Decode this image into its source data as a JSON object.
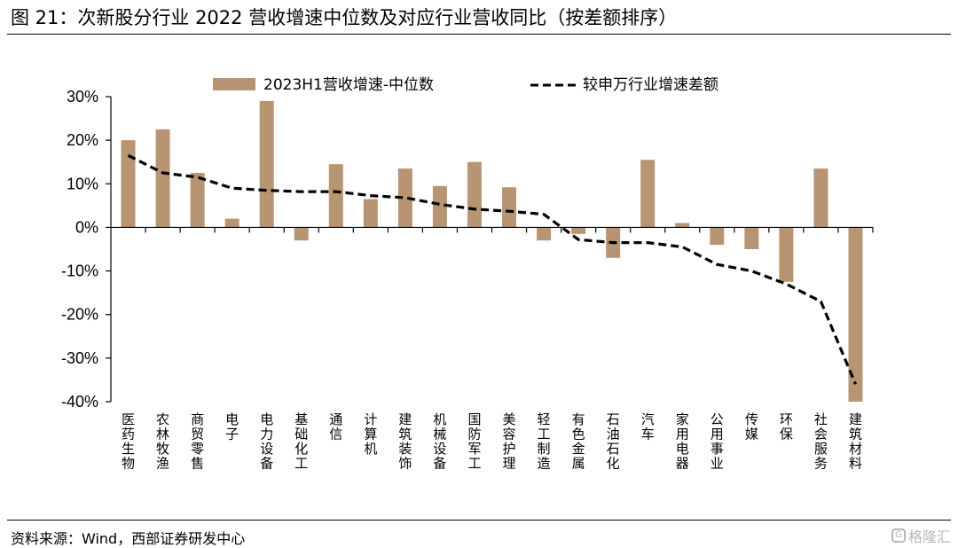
{
  "figure": {
    "title": "图 21：次新股分行业 2022 营收增速中位数及对应行业营收同比（按差额排序）",
    "source": "资料来源：Wind，西部证券研发中心",
    "watermark": "格隆汇"
  },
  "chart_data": {
    "type": "bar",
    "categories": [
      "医药生物",
      "农林牧渔",
      "商贸零售",
      "电子",
      "电力设备",
      "基础化工",
      "通信",
      "计算机",
      "建筑装饰",
      "机械设备",
      "国防军工",
      "美容护理",
      "轻工制造",
      "有色金属",
      "石油石化",
      "汽车",
      "家用电器",
      "公用事业",
      "传媒",
      "环保",
      "社会服务",
      "建筑材料"
    ],
    "series": [
      {
        "name": "2023H1营收增速-中位数",
        "type": "bar",
        "color": "#B89572",
        "values": [
          20,
          22.5,
          12.5,
          2,
          29,
          -3,
          14.5,
          6.5,
          13.5,
          9.5,
          15,
          9.2,
          -3,
          -1.5,
          -7,
          15.5,
          1,
          -4,
          -5,
          -12.5,
          13.5,
          -40
        ]
      },
      {
        "name": "较申万行业增速差额",
        "type": "line",
        "style": "dashed",
        "color": "#000000",
        "values": [
          16.5,
          12.5,
          11.5,
          9,
          8.5,
          8.2,
          8.2,
          7.3,
          6.8,
          5.3,
          4.2,
          3.7,
          3,
          -2.8,
          -3.5,
          -3.5,
          -4.5,
          -8.5,
          -10,
          -13,
          -17,
          -36
        ]
      }
    ],
    "yticks": [
      "30%",
      "20%",
      "10%",
      "0%",
      "-10%",
      "-20%",
      "-30%",
      "-40%"
    ],
    "ylim": [
      -40,
      30
    ],
    "legend_position": "top",
    "grid": false
  }
}
